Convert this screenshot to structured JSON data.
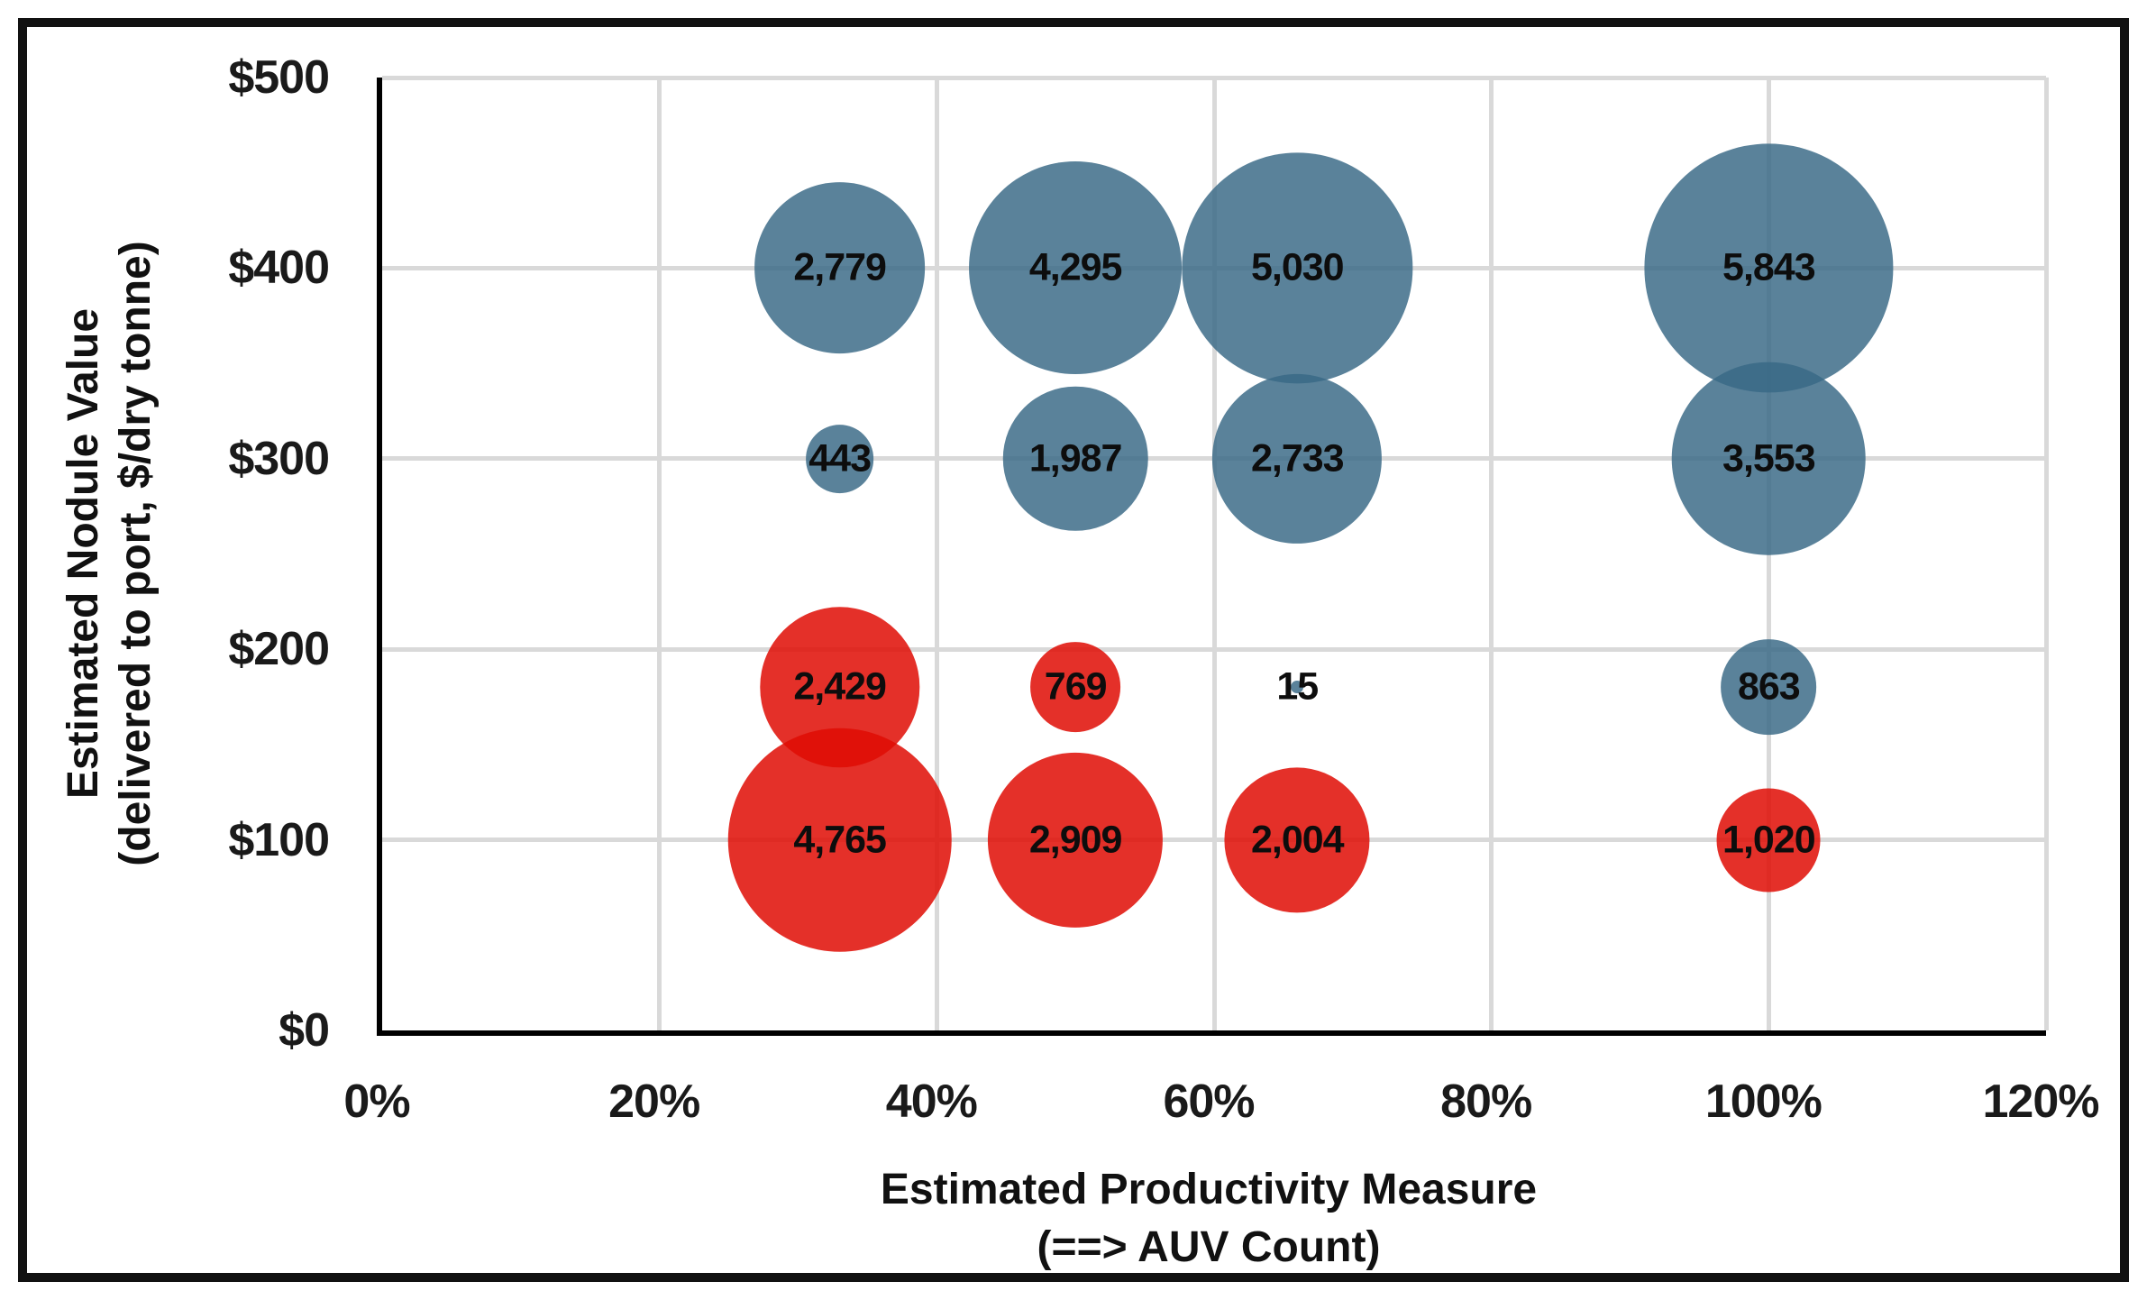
{
  "figure": {
    "background": "#ffffff",
    "border_color": "#111111",
    "gridline_color": "#d9d9d9",
    "axis_color": "#000000"
  },
  "chart_data": {
    "type": "scatter",
    "subtype": "bubble",
    "title": "",
    "xlabel_lines": [
      "Estimated Productivity Measure",
      "(==> AUV Count)"
    ],
    "ylabel_lines": [
      "Estimated Nodule Value",
      "(delivered to port, $/dry tonne)"
    ],
    "xlim": [
      0,
      120
    ],
    "ylim": [
      0,
      500
    ],
    "grid": true,
    "legend": "none",
    "x_ticks": [
      {
        "value": 0,
        "label": "0%"
      },
      {
        "value": 20,
        "label": "20%"
      },
      {
        "value": 40,
        "label": "40%"
      },
      {
        "value": 60,
        "label": "60%"
      },
      {
        "value": 80,
        "label": "80%"
      },
      {
        "value": 100,
        "label": "100%"
      },
      {
        "value": 120,
        "label": "120%"
      }
    ],
    "y_ticks": [
      {
        "value": 0,
        "label": "$0"
      },
      {
        "value": 100,
        "label": "$100"
      },
      {
        "value": 200,
        "label": "$200"
      },
      {
        "value": 300,
        "label": "$300"
      },
      {
        "value": 400,
        "label": "$400"
      },
      {
        "value": 500,
        "label": "$500"
      }
    ],
    "size_rule": "diameter_px = 3.6 * sqrt(value)",
    "series": [
      {
        "name": "blue-bubbles",
        "color": "rgba(56,105,133,0.83)",
        "points": [
          {
            "x": 33,
            "y": 400,
            "value": 2779,
            "label": "2,779"
          },
          {
            "x": 50,
            "y": 400,
            "value": 4295,
            "label": "4,295"
          },
          {
            "x": 66,
            "y": 400,
            "value": 5030,
            "label": "5,030"
          },
          {
            "x": 100,
            "y": 400,
            "value": 5843,
            "label": "5,843"
          },
          {
            "x": 33,
            "y": 300,
            "value": 443,
            "label": "443"
          },
          {
            "x": 50,
            "y": 300,
            "value": 1987,
            "label": "1,987"
          },
          {
            "x": 66,
            "y": 300,
            "value": 2733,
            "label": "2,733"
          },
          {
            "x": 100,
            "y": 300,
            "value": 3553,
            "label": "3,553"
          },
          {
            "x": 66,
            "y": 180,
            "value": 15,
            "label": "15"
          },
          {
            "x": 100,
            "y": 180,
            "value": 863,
            "label": "863"
          }
        ]
      },
      {
        "name": "red-bubbles",
        "color": "rgba(223,12,4,0.85)",
        "points": [
          {
            "x": 33,
            "y": 180,
            "value": 2429,
            "label": "2,429"
          },
          {
            "x": 50,
            "y": 180,
            "value": 769,
            "label": "769"
          },
          {
            "x": 33,
            "y": 100,
            "value": 4765,
            "label": "4,765"
          },
          {
            "x": 50,
            "y": 100,
            "value": 2909,
            "label": "2,909"
          },
          {
            "x": 66,
            "y": 100,
            "value": 2004,
            "label": "2,004"
          },
          {
            "x": 100,
            "y": 100,
            "value": 1020,
            "label": "1,020"
          }
        ]
      }
    ]
  }
}
